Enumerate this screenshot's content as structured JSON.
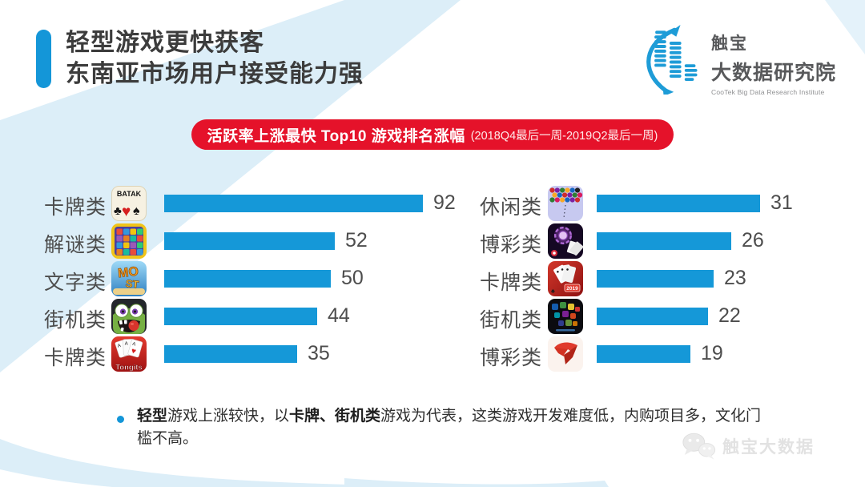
{
  "page": {
    "accent_blue": "#1496d8",
    "bar_blue": "#1598d8",
    "banner_red": "#e5122a",
    "decor_blue": "#dceef8"
  },
  "header": {
    "title_line1": "轻型游戏更快获客",
    "title_line2": "东南亚市场用户接受能力强",
    "logo": {
      "cn_name": "触宝",
      "cn_dept": "大数据研究院",
      "en": "CooTek Big Data Research Institute"
    }
  },
  "banner": {
    "main": "活跃率上涨最快 Top10 游戏排名涨幅",
    "period": "(2018Q4最后一周-2019Q2最后一周)"
  },
  "chart_data": {
    "type": "bar",
    "orientation": "horizontal",
    "title": "活跃率上涨最快 Top10 游戏排名涨幅",
    "period": "2018Q4最后一周-2019Q2最后一周",
    "bar_color": "#1598d8",
    "legend": "none",
    "grid": false,
    "columns": [
      {
        "side": "left",
        "rows": [
          {
            "category": "卡牌类",
            "icon": "batak-card-game-icon",
            "value": 92
          },
          {
            "category": "解谜类",
            "icon": "puzzle-grid-game-icon",
            "value": 52
          },
          {
            "category": "文字类",
            "icon": "word-game-icon",
            "value": 50
          },
          {
            "category": "街机类",
            "icon": "zombie-arcade-game-icon",
            "value": 44
          },
          {
            "category": "卡牌类",
            "icon": "tongits-card-game-icon",
            "value": 35
          }
        ]
      },
      {
        "side": "right",
        "rows": [
          {
            "category": "休闲类",
            "icon": "bubble-shooter-game-icon",
            "value": 31
          },
          {
            "category": "博彩类",
            "icon": "casino-game-icon",
            "value": 26
          },
          {
            "category": "卡牌类",
            "icon": "card-2019-game-icon",
            "value": 23
          },
          {
            "category": "街机类",
            "icon": "block-arcade-game-icon",
            "value": 22
          },
          {
            "category": "博彩类",
            "icon": "zingplay-game-icon",
            "value": 19
          }
        ]
      }
    ]
  },
  "icons": {
    "spade": "♠",
    "heart": "♥",
    "club": "♣"
  },
  "icon_art": {
    "batak": "BATAK",
    "word_top": "MO",
    "word_bottom": "ST",
    "card_a": "A",
    "tongits": "Tongits",
    "year": "2019"
  },
  "note": {
    "seg1_bold": "轻型",
    "seg2": "游戏上涨较快，以",
    "seg3_bold": "卡牌、街机类",
    "seg4": "游戏为代表，这类游戏开发难度低，内购项目多，文化门槛不高。"
  },
  "watermark": {
    "label": "触宝大数据"
  }
}
